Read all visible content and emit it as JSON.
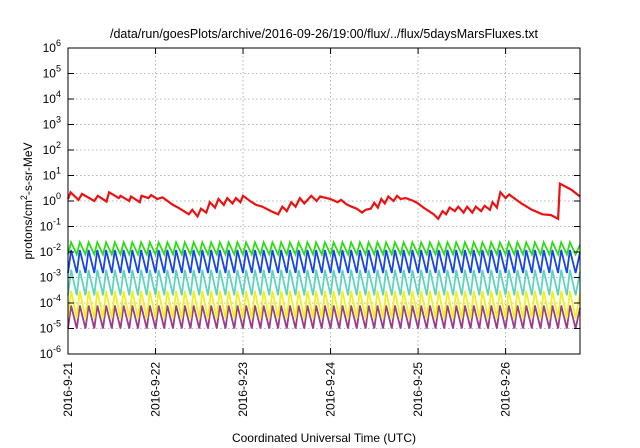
{
  "chart_data": {
    "type": "line",
    "title": "/data/run/goesPlots/archive/2016-09-26/19:00/flux/../flux/5daysMarsFluxes.txt",
    "xlabel": "Coordinated Universal Time (UTC)",
    "ylabel": "protons/cm²-s-sr-MeV",
    "ylabel_parts": {
      "pre": "protons/cm",
      "sup": "2",
      "post": "-s-sr-MeV"
    },
    "yscale": "log",
    "ylim_exp": [
      -6,
      6
    ],
    "yticks": [
      {
        "exp": -6,
        "base": "10",
        "sup": "-6"
      },
      {
        "exp": -5,
        "base": "10",
        "sup": "-5"
      },
      {
        "exp": -4,
        "base": "10",
        "sup": "-4"
      },
      {
        "exp": -3,
        "base": "10",
        "sup": "-3"
      },
      {
        "exp": -2,
        "base": "10",
        "sup": "-2"
      },
      {
        "exp": -1,
        "base": "10",
        "sup": "-1"
      },
      {
        "exp": 0,
        "base": "10",
        "sup": "0"
      },
      {
        "exp": 1,
        "base": "10",
        "sup": "1"
      },
      {
        "exp": 2,
        "base": "10",
        "sup": "2"
      },
      {
        "exp": 3,
        "base": "10",
        "sup": "3"
      },
      {
        "exp": 4,
        "base": "10",
        "sup": "4"
      },
      {
        "exp": 5,
        "base": "10",
        "sup": "5"
      },
      {
        "exp": 6,
        "base": "10",
        "sup": "6"
      }
    ],
    "xlim_days": [
      0,
      5.85
    ],
    "xticks": [
      {
        "day": 0,
        "label": "2016-9-21"
      },
      {
        "day": 1,
        "label": "2016-9-22"
      },
      {
        "day": 2,
        "label": "2016-9-23"
      },
      {
        "day": 3,
        "label": "2016-9-24"
      },
      {
        "day": 4,
        "label": "2016-9-25"
      },
      {
        "day": 5,
        "label": "2016-9-26"
      }
    ],
    "grid": true,
    "series": [
      {
        "color": "#9b3d8c",
        "sawtooth": {
          "period_days": 0.1,
          "low": 1e-05,
          "high": 8e-05
        }
      },
      {
        "color": "#f0f020",
        "sawtooth": {
          "period_days": 0.1,
          "low": 2.5e-05,
          "high": 0.0003
        }
      },
      {
        "color": "#5fd3c2",
        "sawtooth": {
          "period_days": 0.1,
          "low": 0.0002,
          "high": 0.002
        }
      },
      {
        "color": "#1646e6",
        "sawtooth": {
          "period_days": 0.1,
          "low": 0.0015,
          "high": 0.012
        }
      },
      {
        "color": "#2cdc14",
        "sawtooth": {
          "period_days": 0.1,
          "low": 0.008,
          "high": 0.024
        }
      },
      {
        "color": "#e81414",
        "points": [
          [
            0.0,
            1.2
          ],
          [
            0.03,
            2.2
          ],
          [
            0.12,
            1.1
          ],
          [
            0.16,
            1.9
          ],
          [
            0.3,
            1.0
          ],
          [
            0.34,
            1.6
          ],
          [
            0.44,
            0.95
          ],
          [
            0.47,
            2.2
          ],
          [
            0.58,
            1.3
          ],
          [
            0.6,
            1.6
          ],
          [
            0.7,
            1.0
          ],
          [
            0.72,
            1.5
          ],
          [
            0.82,
            0.9
          ],
          [
            0.84,
            1.6
          ],
          [
            0.92,
            1.3
          ],
          [
            0.95,
            1.7
          ],
          [
            1.02,
            1.2
          ],
          [
            1.08,
            1.4
          ],
          [
            1.2,
            0.7
          ],
          [
            1.28,
            0.5
          ],
          [
            1.38,
            0.3
          ],
          [
            1.42,
            0.45
          ],
          [
            1.48,
            0.25
          ],
          [
            1.52,
            0.5
          ],
          [
            1.58,
            0.35
          ],
          [
            1.62,
            0.9
          ],
          [
            1.68,
            0.55
          ],
          [
            1.72,
            1.2
          ],
          [
            1.78,
            0.7
          ],
          [
            1.82,
            1.3
          ],
          [
            1.88,
            0.8
          ],
          [
            1.92,
            1.3
          ],
          [
            1.97,
            0.9
          ],
          [
            2.0,
            1.6
          ],
          [
            2.08,
            1.0
          ],
          [
            2.15,
            0.7
          ],
          [
            2.22,
            0.6
          ],
          [
            2.32,
            0.4
          ],
          [
            2.4,
            0.3
          ],
          [
            2.45,
            0.6
          ],
          [
            2.5,
            0.4
          ],
          [
            2.55,
            0.9
          ],
          [
            2.6,
            0.6
          ],
          [
            2.65,
            1.3
          ],
          [
            2.7,
            0.8
          ],
          [
            2.78,
            1.6
          ],
          [
            2.84,
            1.0
          ],
          [
            2.88,
            1.5
          ],
          [
            3.0,
            1.2
          ],
          [
            3.08,
            0.9
          ],
          [
            3.12,
            1.1
          ],
          [
            3.18,
            0.75
          ],
          [
            3.24,
            0.6
          ],
          [
            3.3,
            0.5
          ],
          [
            3.36,
            0.35
          ],
          [
            3.4,
            0.45
          ],
          [
            3.46,
            0.5
          ],
          [
            3.5,
            0.85
          ],
          [
            3.54,
            0.55
          ],
          [
            3.58,
            1.2
          ],
          [
            3.62,
            0.8
          ],
          [
            3.66,
            1.5
          ],
          [
            3.72,
            1.0
          ],
          [
            3.76,
            1.6
          ],
          [
            3.8,
            1.2
          ],
          [
            3.86,
            1.3
          ],
          [
            3.95,
            1.0
          ],
          [
            4.0,
            0.8
          ],
          [
            4.08,
            0.5
          ],
          [
            4.18,
            0.3
          ],
          [
            4.23,
            0.2
          ],
          [
            4.28,
            0.4
          ],
          [
            4.32,
            0.3
          ],
          [
            4.36,
            0.55
          ],
          [
            4.42,
            0.4
          ],
          [
            4.46,
            0.6
          ],
          [
            4.52,
            0.35
          ],
          [
            4.56,
            0.6
          ],
          [
            4.62,
            0.35
          ],
          [
            4.66,
            0.6
          ],
          [
            4.72,
            0.4
          ],
          [
            4.76,
            0.65
          ],
          [
            4.82,
            0.45
          ],
          [
            4.85,
            0.9
          ],
          [
            4.9,
            0.55
          ],
          [
            4.94,
            2.2
          ],
          [
            5.0,
            1.3
          ],
          [
            5.04,
            1.8
          ],
          [
            5.18,
            0.8
          ],
          [
            5.3,
            0.45
          ],
          [
            5.42,
            0.3
          ],
          [
            5.52,
            0.28
          ],
          [
            5.6,
            0.2
          ],
          [
            5.62,
            4.8
          ],
          [
            5.75,
            2.8
          ],
          [
            5.85,
            1.5
          ]
        ]
      }
    ]
  }
}
